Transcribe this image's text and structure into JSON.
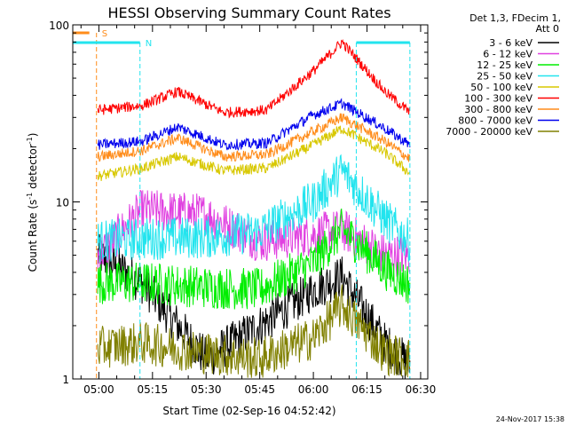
{
  "chart_data": {
    "type": "line",
    "title": "HESSI Observing Summary Count Rates",
    "xlabel": "Start Time (02-Sep-16 04:52:42)",
    "ylabel_main": "Count Rate (s",
    "ylabel_sup1": "-1",
    "ylabel_mid": " detector",
    "ylabel_sup2": "-1",
    "ylabel_end": ")",
    "ylog": true,
    "xlim": [
      "04:52:42",
      "06:32:00"
    ],
    "ylim": [
      1,
      100
    ],
    "x_ticks": [
      "05:00",
      "05:15",
      "05:30",
      "05:45",
      "06:00",
      "06:15",
      "06:30"
    ],
    "y_ticks": [
      "1",
      "10",
      "100"
    ],
    "legend_position": "top-right",
    "legend_header": [
      "Det 1,3, FDecim 1,",
      "Att 0"
    ],
    "timestamp": "24-Nov-2017 15:38",
    "flags": [
      {
        "label": "S",
        "color": "#ff8c1a",
        "start": "04:52:42",
        "end": "04:57:20",
        "marker_time": "04:59:20"
      },
      {
        "label": "N",
        "color": "#22e4ee",
        "start": "04:52:42",
        "end": "05:11:30",
        "marker_time": "05:11:30",
        "restart": "06:12:00",
        "restart_end": "06:27:00"
      }
    ],
    "series": [
      {
        "name": "3 - 6 keV",
        "color": "#000000",
        "profile": [
          [
            5.0,
            "05:00"
          ],
          [
            3.5,
            "05:12"
          ],
          [
            1.3,
            "05:30"
          ],
          [
            2.0,
            "05:45"
          ],
          [
            3.2,
            "06:00"
          ],
          [
            3.8,
            "06:08"
          ],
          [
            1.6,
            "06:20"
          ],
          [
            1.2,
            "06:27"
          ]
        ]
      },
      {
        "name": "6 - 12 keV",
        "color": "#e040e0",
        "profile": [
          [
            5.0,
            "05:00"
          ],
          [
            9.0,
            "05:12"
          ],
          [
            8.5,
            "05:30"
          ],
          [
            6.0,
            "05:45"
          ],
          [
            6.5,
            "06:00"
          ],
          [
            7.0,
            "06:08"
          ],
          [
            5.0,
            "06:20"
          ],
          [
            5.0,
            "06:27"
          ]
        ]
      },
      {
        "name": "12 - 25 keV",
        "color": "#00ee00",
        "profile": [
          [
            3.5,
            "05:00"
          ],
          [
            3.5,
            "05:12"
          ],
          [
            3.3,
            "05:30"
          ],
          [
            3.2,
            "05:45"
          ],
          [
            4.5,
            "06:00"
          ],
          [
            7.0,
            "06:08"
          ],
          [
            4.2,
            "06:20"
          ],
          [
            3.4,
            "06:27"
          ]
        ]
      },
      {
        "name": "25 - 50 keV",
        "color": "#22e4ee",
        "profile": [
          [
            6.0,
            "05:00"
          ],
          [
            6.2,
            "05:12"
          ],
          [
            6.3,
            "05:30"
          ],
          [
            6.8,
            "05:45"
          ],
          [
            10.0,
            "06:00"
          ],
          [
            15.0,
            "06:08"
          ],
          [
            8.0,
            "06:20"
          ],
          [
            6.0,
            "06:27"
          ]
        ]
      },
      {
        "name": "50 - 100 keV",
        "color": "#d8c800",
        "profile": [
          [
            14.0,
            "05:00"
          ],
          [
            15.5,
            "05:12"
          ],
          [
            18.0,
            "05:22"
          ],
          [
            15.0,
            "05:35"
          ],
          [
            15.5,
            "05:47"
          ],
          [
            21.0,
            "06:00"
          ],
          [
            26.0,
            "06:08"
          ],
          [
            19.0,
            "06:20"
          ],
          [
            14.5,
            "06:27"
          ]
        ]
      },
      {
        "name": "100 - 300 keV",
        "color": "#ff0000",
        "profile": [
          [
            33.0,
            "05:00"
          ],
          [
            35.0,
            "05:12"
          ],
          [
            42.0,
            "05:22"
          ],
          [
            32.0,
            "05:35"
          ],
          [
            33.0,
            "05:47"
          ],
          [
            55.0,
            "06:00"
          ],
          [
            80.0,
            "06:08"
          ],
          [
            42.0,
            "06:20"
          ],
          [
            32.0,
            "06:27"
          ]
        ]
      },
      {
        "name": "300 - 800 keV",
        "color": "#ff8c1a",
        "profile": [
          [
            18.0,
            "05:00"
          ],
          [
            19.5,
            "05:12"
          ],
          [
            23.0,
            "05:22"
          ],
          [
            18.0,
            "05:35"
          ],
          [
            18.5,
            "05:47"
          ],
          [
            25.0,
            "06:00"
          ],
          [
            30.0,
            "06:08"
          ],
          [
            22.0,
            "06:20"
          ],
          [
            17.5,
            "06:27"
          ]
        ]
      },
      {
        "name": "800 - 7000 keV",
        "color": "#0000ee",
        "profile": [
          [
            21.0,
            "05:00"
          ],
          [
            22.0,
            "05:12"
          ],
          [
            26.5,
            "05:22"
          ],
          [
            21.0,
            "05:35"
          ],
          [
            21.5,
            "05:47"
          ],
          [
            31.0,
            "06:00"
          ],
          [
            36.0,
            "06:08"
          ],
          [
            26.0,
            "06:20"
          ],
          [
            21.0,
            "06:27"
          ]
        ]
      },
      {
        "name": "7000 - 20000 keV",
        "color": "#808000",
        "profile": [
          [
            1.5,
            "05:00"
          ],
          [
            1.6,
            "05:12"
          ],
          [
            1.4,
            "05:30"
          ],
          [
            1.3,
            "05:45"
          ],
          [
            1.7,
            "06:00"
          ],
          [
            2.6,
            "06:08"
          ],
          [
            1.4,
            "06:20"
          ],
          [
            1.3,
            "06:27"
          ]
        ]
      }
    ]
  }
}
